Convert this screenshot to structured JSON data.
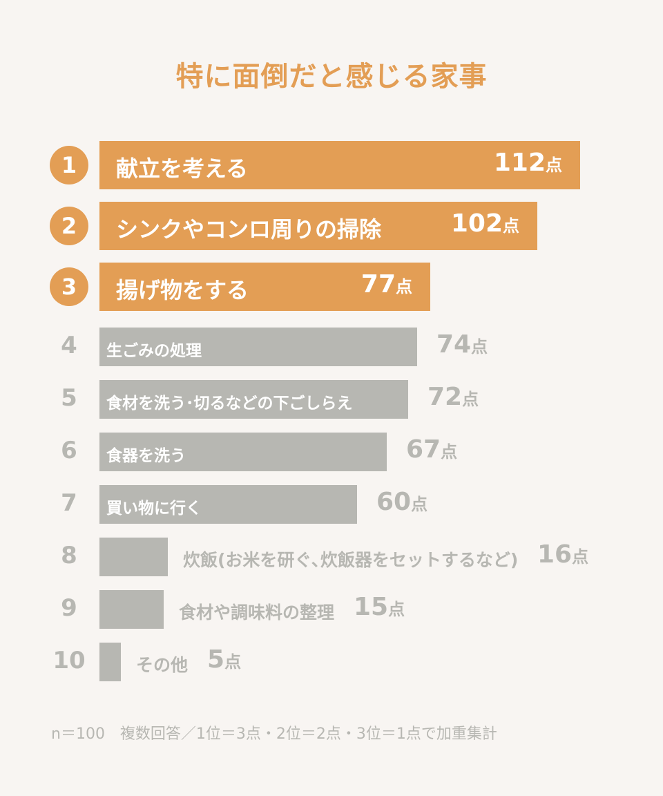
{
  "chart_data": {
    "type": "bar",
    "orientation": "horizontal",
    "title": "特に面倒だと感じる家事",
    "ranks": [
      "1",
      "2",
      "3",
      "4",
      "5",
      "6",
      "7",
      "8",
      "9",
      "10"
    ],
    "categories": [
      "献立を考える",
      "シンクやコンロ周りの掃除",
      "揚げ物をする",
      "生ごみの処理",
      "食材を洗う･切るなどの下ごしらえ",
      "食器を洗う",
      "買い物に行く",
      "炊飯(お米を研ぐ､炊飯器をセットするなど)",
      "食材や調味料の整理",
      "その他"
    ],
    "values": [
      112,
      102,
      77,
      74,
      72,
      67,
      60,
      16,
      15,
      5
    ],
    "value_labels": [
      "112",
      "102",
      "77",
      "74",
      "72",
      "67",
      "60",
      "16",
      "15",
      "5"
    ],
    "unit": "点",
    "highlight_top": 3,
    "colors": {
      "highlight": "#e39e55",
      "rest": "#b7b7b2",
      "background": "#f8f5f2"
    }
  },
  "footnote": "n＝100　複数回答／1位＝3点・2位＝2点・3位＝1点で加重集計"
}
